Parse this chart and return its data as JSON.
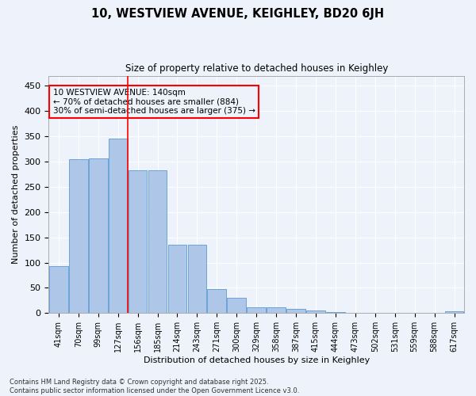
{
  "title": "10, WESTVIEW AVENUE, KEIGHLEY, BD20 6JH",
  "subtitle": "Size of property relative to detached houses in Keighley",
  "xlabel": "Distribution of detached houses by size in Keighley",
  "ylabel": "Number of detached properties",
  "categories": [
    "41sqm",
    "70sqm",
    "99sqm",
    "127sqm",
    "156sqm",
    "185sqm",
    "214sqm",
    "243sqm",
    "271sqm",
    "300sqm",
    "329sqm",
    "358sqm",
    "387sqm",
    "415sqm",
    "444sqm",
    "473sqm",
    "502sqm",
    "531sqm",
    "559sqm",
    "588sqm",
    "617sqm"
  ],
  "values": [
    93,
    305,
    307,
    346,
    282,
    282,
    135,
    135,
    47,
    31,
    11,
    11,
    8,
    6,
    2,
    1,
    1,
    1,
    0,
    1,
    3
  ],
  "bar_color": "#aec6e8",
  "bar_edge_color": "#5b9bd5",
  "annotation_text_line1": "10 WESTVIEW AVENUE: 140sqm",
  "annotation_text_line2": "← 70% of detached houses are smaller (884)",
  "annotation_text_line3": "30% of semi-detached houses are larger (375) →",
  "background_color": "#eef2fa",
  "grid_color": "#ffffff",
  "footer_line1": "Contains HM Land Registry data © Crown copyright and database right 2025.",
  "footer_line2": "Contains public sector information licensed under the Open Government Licence v3.0.",
  "yticks": [
    0,
    50,
    100,
    150,
    200,
    250,
    300,
    350,
    400,
    450
  ],
  "ylim": [
    0,
    470
  ]
}
